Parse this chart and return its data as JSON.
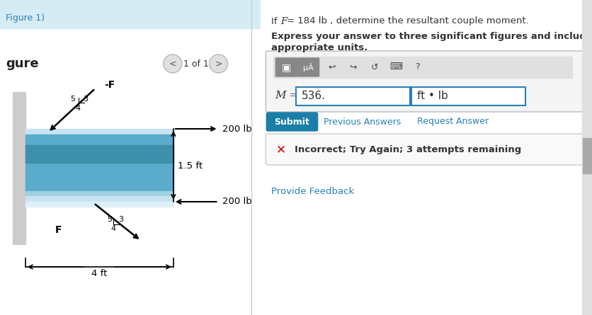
{
  "bg_color": "#ffffff",
  "left_panel_bg": "#e8f4f8",
  "fig_label": "Figure 1)",
  "figure_label": "gure",
  "nav_text": "1 of 1",
  "beam_color_top": "#a8d4e6",
  "beam_color_mid": "#5aa0c0",
  "beam_color_bot": "#a8d4e6",
  "question_text": "If F = 184 lb , determine the resultant couple moment.",
  "instruction_text": "Express your answer to three significant figures and include the\nappropriate units.",
  "M_label": "M =",
  "answer_value": "536.",
  "units_value": "ft • lb",
  "submit_text": "Submit",
  "submit_bg": "#1a7fa8",
  "prev_answers_text": "Previous Answers",
  "request_answer_text": "Request Answer",
  "incorrect_text": "Incorrect; Try Again; 3 attempts remaining",
  "feedback_text": "Provide Feedback",
  "force_200_top": "200 lb",
  "force_200_bot": "200 lb",
  "dist_15": "1.5 ft",
  "dist_4": "4 ft",
  "F_top_label": "-F",
  "F_bot_label": "F",
  "ratio_top": [
    "5",
    "3",
    "4"
  ],
  "ratio_bot": [
    "5",
    "3",
    "4"
  ],
  "link_color": "#2980b9",
  "text_color": "#333333",
  "incorrect_red": "#cc0000"
}
